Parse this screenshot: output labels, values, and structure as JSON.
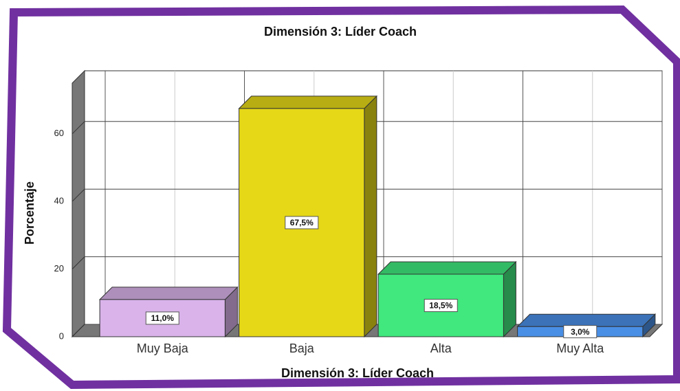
{
  "chart_data": {
    "type": "bar3d",
    "title": "Dimensión 3: Líder Coach",
    "x_label": "Dimensión 3: Líder Coach",
    "y_label": "Porcentaje",
    "categories": [
      "Muy Baja",
      "Baja",
      "Alta",
      "Muy Alta"
    ],
    "values": [
      11.0,
      67.5,
      18.5,
      3.0
    ],
    "value_labels": [
      "11,0%",
      "67,5%",
      "18,5%",
      "3,0%"
    ],
    "colors": [
      "#d9b3ea",
      "#e6d817",
      "#40e87d",
      "#4a8fe6"
    ],
    "ylim": [
      0,
      75
    ],
    "yticks": [
      0,
      20,
      40,
      60
    ],
    "grid": true
  }
}
